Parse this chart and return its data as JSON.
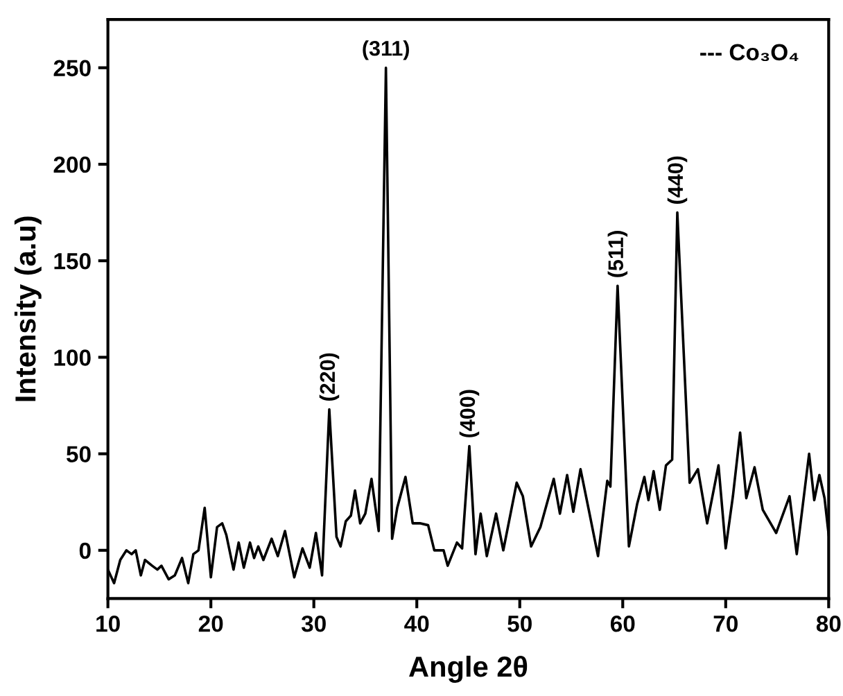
{
  "chart_data": {
    "type": "line",
    "xlabel": "Angle 2θ",
    "ylabel": "Intensity (a.u)",
    "xlim": [
      10,
      80
    ],
    "ylim": [
      -25,
      275
    ],
    "xticks": [
      10,
      20,
      30,
      40,
      50,
      60,
      70,
      80
    ],
    "yticks": [
      0,
      50,
      100,
      150,
      200,
      250
    ],
    "grid": false,
    "legend": false,
    "marker": "none",
    "line_style": "solid",
    "annotations": [
      {
        "text": "(220)",
        "x": 31.5,
        "y": 73
      },
      {
        "text": "(311)",
        "x": 37.0,
        "y": 250
      },
      {
        "text": "(400)",
        "x": 45.1,
        "y": 54
      },
      {
        "text": "(511)",
        "x": 59.5,
        "y": 137
      },
      {
        "text": "(440)",
        "x": 65.3,
        "y": 175
      },
      "--- Co₃O₄"
    ],
    "series": [
      {
        "color": "#000000",
        "x": [
          10,
          10.6,
          11.2,
          11.8,
          12.3,
          12.7,
          13.2,
          13.6,
          14.3,
          14.8,
          15.2,
          15.9,
          16.5,
          17.2,
          17.8,
          18.3,
          18.8,
          19.4,
          20.0,
          20.6,
          21.1,
          21.5,
          22.2,
          22.7,
          23.2,
          23.8,
          24.2,
          24.6,
          25.1,
          25.9,
          26.5,
          27.2,
          28.1,
          28.9,
          29.6,
          30.2,
          30.8,
          31.5,
          32.2,
          32.6,
          33.1,
          33.6,
          34.0,
          34.5,
          35.0,
          35.6,
          36.3,
          37.0,
          37.6,
          38.1,
          38.9,
          39.6,
          40.3,
          41.1,
          41.7,
          42.6,
          43.0,
          43.9,
          44.4,
          45.1,
          45.7,
          46.2,
          46.8,
          47.7,
          48.4,
          49.7,
          50.3,
          51.1,
          52.0,
          53.3,
          53.9,
          54.6,
          55.2,
          55.9,
          56.7,
          57.6,
          58.5,
          58.8,
          59.5,
          60.6,
          61.4,
          62.1,
          62.5,
          63.0,
          63.6,
          64.2,
          64.8,
          65.3,
          66.5,
          67.3,
          68.2,
          69.3,
          70.0,
          70.7,
          71.4,
          72.0,
          72.8,
          73.6,
          74.9,
          76.2,
          76.9,
          78.1,
          78.6,
          79.1,
          79.6,
          80.0
        ],
        "values": [
          -10,
          -17,
          -5,
          0,
          -2,
          0,
          -13,
          -5,
          -8,
          -10,
          -8,
          -15,
          -13,
          -4,
          -17,
          -2,
          0,
          22,
          -14,
          12,
          14,
          8,
          -10,
          4,
          -9,
          4,
          -4,
          2,
          -5,
          6,
          -3,
          10,
          -14,
          1,
          -9,
          9,
          -13,
          73,
          7,
          2,
          15,
          18,
          31,
          14,
          19,
          37,
          10,
          250,
          6,
          22,
          38,
          14,
          14,
          13,
          0,
          0,
          -8,
          4,
          1,
          54,
          -2,
          19,
          -3,
          19,
          0,
          35,
          28,
          2,
          12,
          37,
          19,
          39,
          20,
          42,
          21,
          -3,
          36,
          33,
          137,
          2,
          24,
          38,
          26,
          41,
          21,
          44,
          47,
          175,
          35,
          42,
          14,
          44,
          1,
          28,
          61,
          27,
          43,
          21,
          9,
          28,
          -2,
          50,
          26,
          39,
          27,
          8
        ]
      }
    ]
  }
}
